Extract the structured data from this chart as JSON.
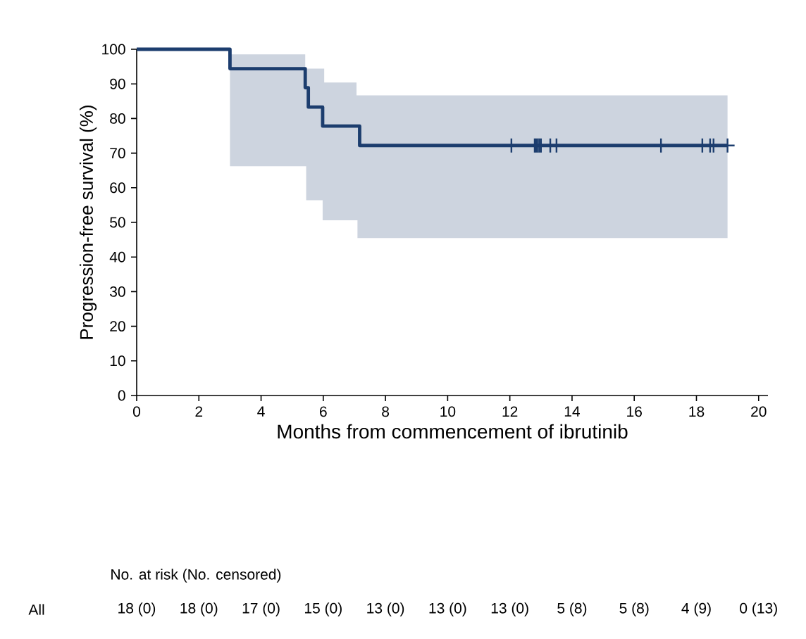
{
  "chart_data": {
    "type": "step",
    "xlabel": "Months from commencement of ibrutinib",
    "ylabel": "Progression-free survival (%)",
    "xlim": [
      0,
      20.3
    ],
    "ylim": [
      0,
      100
    ],
    "xticks": [
      0,
      2,
      4,
      6,
      8,
      10,
      12,
      14,
      16,
      18,
      20
    ],
    "yticks": [
      0,
      10,
      20,
      30,
      40,
      50,
      60,
      70,
      80,
      90,
      100
    ],
    "series": [
      {
        "color": "#1c3d6e",
        "x": [
          0,
          3,
          5.42,
          5.45,
          5.52,
          5.98,
          6.03,
          7.07,
          7.1,
          7.17,
          19
        ],
        "values": [
          100,
          94.4,
          88.9,
          88.9,
          83.3,
          77.8,
          77.8,
          77.8,
          77.8,
          72.2,
          72.2
        ],
        "upper": [
          null,
          98.5,
          94.4,
          94.4,
          94.4,
          94.4,
          90.4,
          86.7,
          86.7,
          86.7,
          86.7
        ],
        "lower": [
          null,
          66.2,
          66.2,
          56.4,
          56.4,
          50.6,
          50.6,
          50.6,
          45.5,
          45.5,
          45.5
        ]
      },
      {
        "type": "scatter",
        "color": "#1c3d6e",
        "marker": "cross",
        "x": [
          12.05,
          12.8,
          12.85,
          12.9,
          12.95,
          13.0,
          13.3,
          13.5,
          16.86,
          18.19,
          18.44,
          18.55,
          19.0
        ],
        "values": [
          72.2,
          72.2,
          72.2,
          72.2,
          72.2,
          72.2,
          72.2,
          72.2,
          72.2,
          72.2,
          72.2,
          72.2,
          72.2
        ]
      }
    ],
    "annotations": [
      "No. at risk (No. censored)",
      "All",
      "18 (0)",
      "18 (0)",
      "17 (0)",
      "15 (0)",
      "13 (0)",
      "13 (0)",
      "13 (0)",
      "5 (8)",
      "5 (8)",
      "4 (9)",
      "0 (13)"
    ]
  }
}
